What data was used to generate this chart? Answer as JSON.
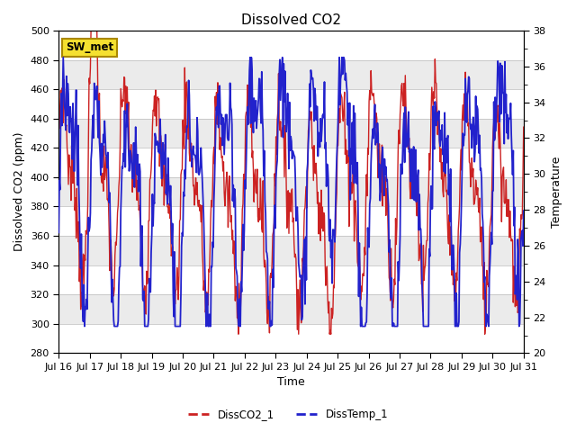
{
  "title": "Dissolved CO2",
  "xlabel": "Time",
  "ylabel_left": "Dissolved CO2 (ppm)",
  "ylabel_right": "Temperature",
  "ylim_left": [
    280,
    500
  ],
  "ylim_right": [
    20,
    38
  ],
  "yticks_left": [
    280,
    300,
    320,
    340,
    360,
    380,
    400,
    420,
    440,
    460,
    480,
    500
  ],
  "yticks_right": [
    20,
    22,
    24,
    26,
    28,
    30,
    32,
    34,
    36,
    38
  ],
  "xtick_labels": [
    "Jul 16",
    "Jul 17",
    "Jul 18",
    "Jul 19",
    "Jul 20",
    "Jul 21",
    "Jul 22",
    "Jul 23",
    "Jul 24",
    "Jul 25",
    "Jul 26",
    "Jul 27",
    "Jul 28",
    "Jul 29",
    "Jul 30",
    "Jul 31"
  ],
  "co2_color": "#cc2222",
  "temp_color": "#2222cc",
  "bg_color": "#ebebeb",
  "band_color": "#f5f5f5",
  "legend_co2": "DissCO2_1",
  "legend_temp": "DissTemp_1",
  "station_label": "SW_met",
  "title_fontsize": 11,
  "axis_label_fontsize": 9,
  "tick_fontsize": 8
}
